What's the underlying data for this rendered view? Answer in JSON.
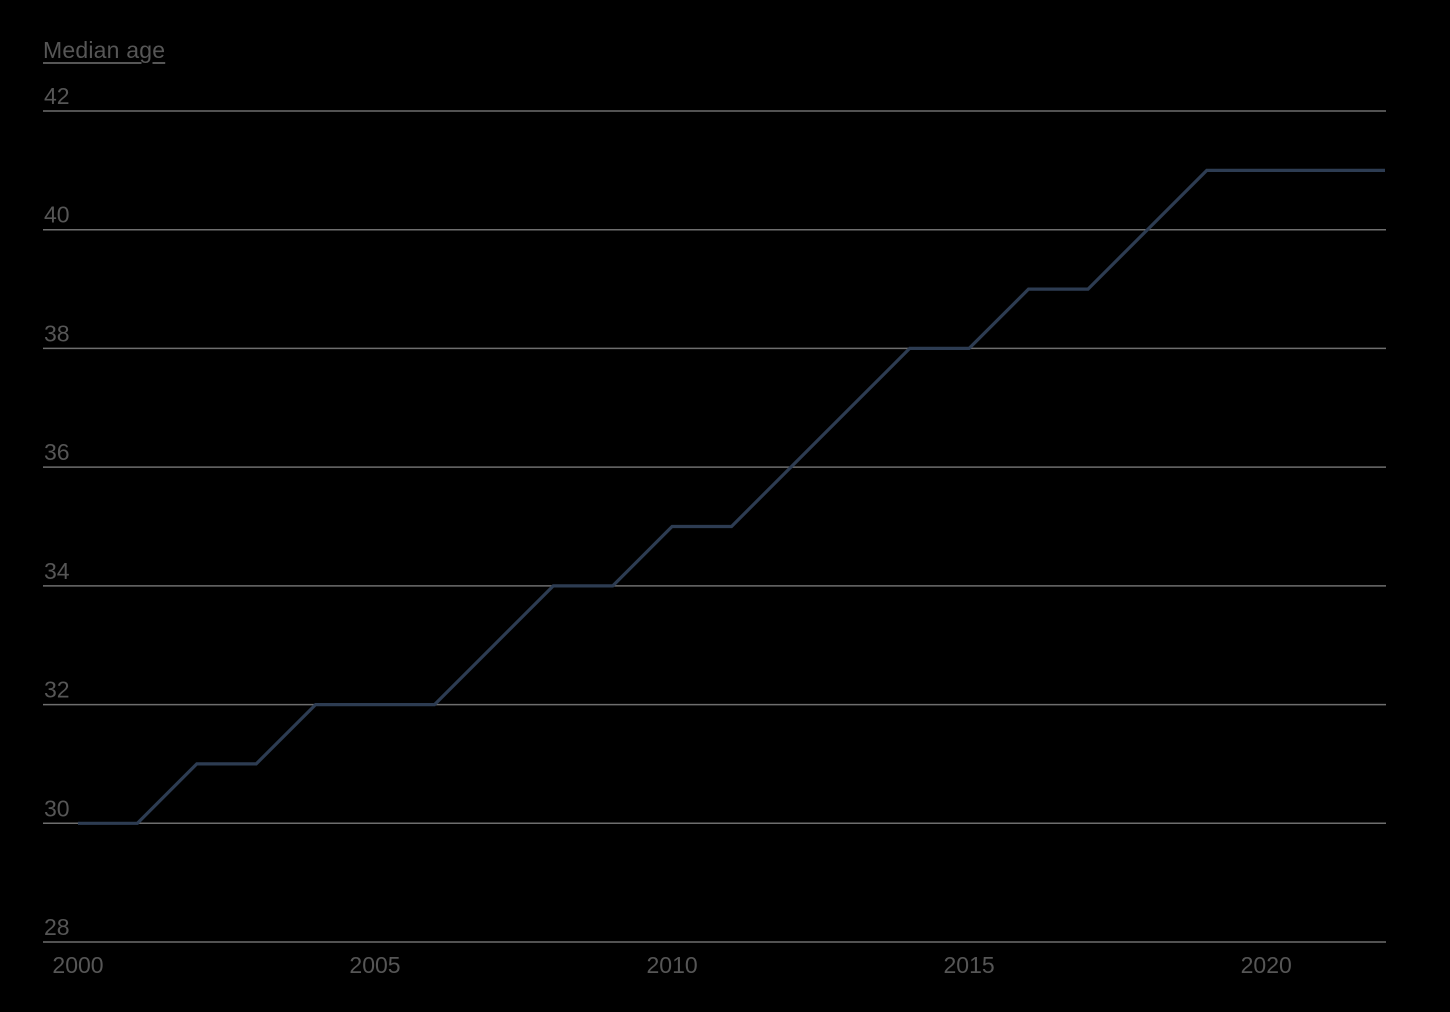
{
  "page": {
    "background": "#000000"
  },
  "chart_data": {
    "type": "line",
    "title": "Median age",
    "x": [
      2000,
      2001,
      2002,
      2003,
      2004,
      2005,
      2006,
      2007,
      2008,
      2009,
      2010,
      2011,
      2012,
      2013,
      2014,
      2015,
      2016,
      2017,
      2018,
      2019,
      2020,
      2021,
      2022
    ],
    "values": [
      30,
      30,
      31,
      31,
      32,
      32,
      32,
      33,
      34,
      34,
      35,
      35,
      36,
      37,
      38,
      38,
      39,
      39,
      40,
      41,
      41,
      41,
      41
    ],
    "series_name": "Median age",
    "x_ticks": [
      2000,
      2005,
      2010,
      2015,
      2020
    ],
    "y_ticks": [
      28,
      30,
      32,
      34,
      36,
      38,
      40,
      42
    ],
    "xlim": [
      2000,
      2022
    ],
    "ylim": [
      28,
      42
    ],
    "xlabel": "",
    "ylabel": "Median age",
    "grid": "horizontal-only",
    "legend": "none",
    "colors": {
      "line": "#2d3c52",
      "grid": "#6e6e6e",
      "text": "#565656",
      "background": "#000000"
    }
  }
}
